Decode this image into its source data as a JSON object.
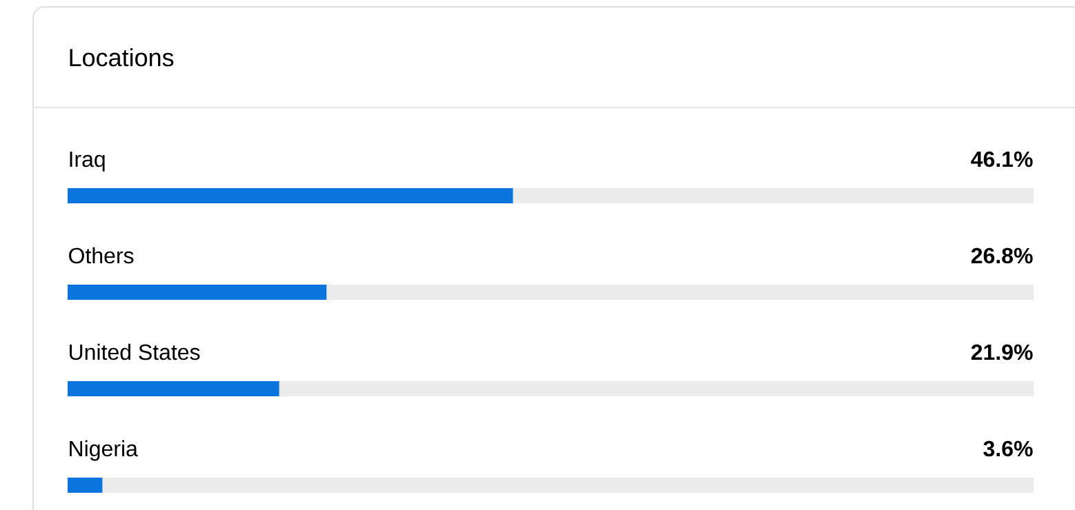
{
  "chart_data": {
    "type": "bar",
    "orientation": "horizontal",
    "title": "Locations",
    "categories": [
      "Iraq",
      "Others",
      "United States",
      "Nigeria"
    ],
    "values": [
      46.1,
      26.8,
      21.9,
      3.6
    ],
    "value_labels": [
      "46.1%",
      "26.8%",
      "21.9%",
      "3.6%"
    ],
    "color": "#0c74dd",
    "xlim": [
      0,
      100
    ]
  }
}
